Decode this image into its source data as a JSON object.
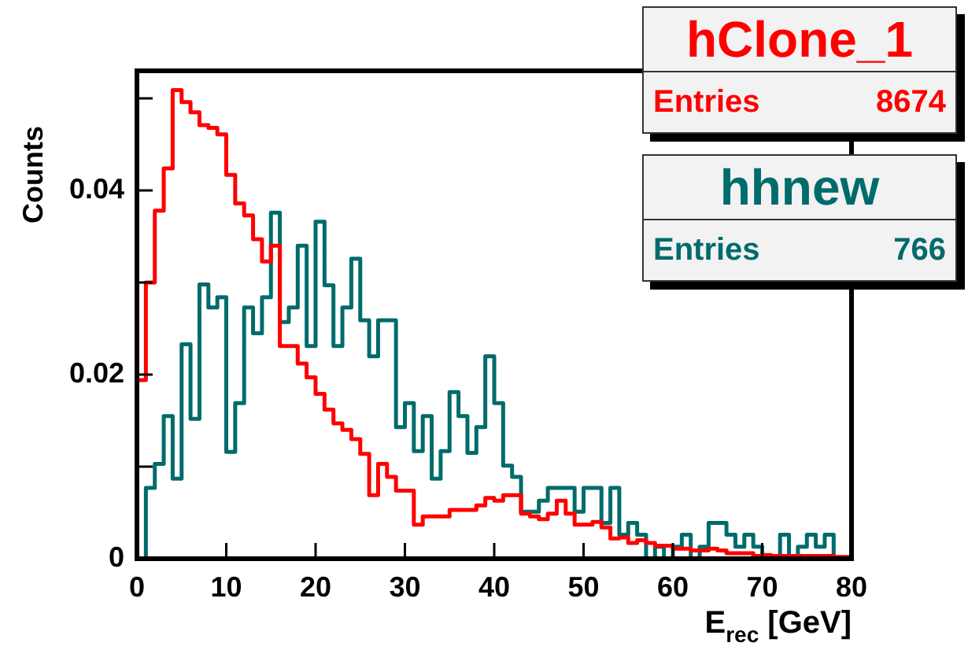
{
  "chart_data": {
    "type": "histogram",
    "xlabel": "E$_{rec}$ [GeV]",
    "ylabel": "Counts",
    "bins": [
      0,
      1,
      2,
      3,
      4,
      5,
      6,
      7,
      8,
      9,
      10,
      11,
      12,
      13,
      14,
      15,
      16,
      17,
      18,
      19,
      20,
      21,
      22,
      23,
      24,
      25,
      26,
      27,
      28,
      29,
      30,
      31,
      32,
      33,
      34,
      35,
      36,
      37,
      38,
      39,
      40,
      41,
      42,
      43,
      44,
      45,
      46,
      47,
      48,
      49,
      50,
      51,
      52,
      53,
      54,
      55,
      56,
      57,
      58,
      59,
      60,
      61,
      62,
      63,
      64,
      65,
      66,
      67,
      68,
      69,
      70,
      71,
      72,
      73,
      74,
      75,
      76,
      77,
      78,
      79,
      80
    ],
    "series": [
      {
        "name": "hClone_1",
        "color": "#ff0000",
        "values": [
          0.0194,
          0.03,
          0.0378,
          0.0424,
          0.0509,
          0.0496,
          0.0485,
          0.0471,
          0.0468,
          0.0461,
          0.0417,
          0.0386,
          0.0373,
          0.0347,
          0.0323,
          0.034,
          0.0231,
          0.0231,
          0.0212,
          0.0197,
          0.0179,
          0.0162,
          0.0147,
          0.014,
          0.013,
          0.0114,
          0.0069,
          0.0103,
          0.0089,
          0.0074,
          0.0074,
          0.0037,
          0.0046,
          0.0046,
          0.0046,
          0.0053,
          0.0053,
          0.0053,
          0.0058,
          0.0066,
          0.0063,
          0.0069,
          0.0069,
          0.0049,
          0.0046,
          0.0043,
          0.0049,
          0.0063,
          0.0049,
          0.0037,
          0.0037,
          0.004,
          0.0034,
          0.0022,
          0.0023,
          0.0017,
          0.002,
          0.0017,
          0.0014,
          0.0014,
          0.0011,
          0.0011,
          0.0009,
          0.0009,
          0.0011,
          0.0009,
          0.0006,
          0.0006,
          0.0006,
          0.0003,
          0.0004,
          0.0003,
          0.0003,
          0.0003,
          0.0003,
          0.0003,
          0.0003,
          0.0003,
          0.0002,
          0.0002
        ]
      },
      {
        "name": "hhnew",
        "color": "#006b6b",
        "values": [
          0,
          0.0077,
          0.0103,
          0.0155,
          0.0087,
          0.0233,
          0.0152,
          0.0298,
          0.0273,
          0.0284,
          0.0116,
          0.0169,
          0.0273,
          0.0245,
          0.0284,
          0.0376,
          0.0257,
          0.0273,
          0.034,
          0.0231,
          0.0366,
          0.0297,
          0.0231,
          0.0273,
          0.0326,
          0.0259,
          0.022,
          0.0259,
          0.0259,
          0.0143,
          0.0169,
          0.0117,
          0.0155,
          0.0087,
          0.0117,
          0.0181,
          0.0155,
          0.0115,
          0.0143,
          0.022,
          0.0169,
          0.0101,
          0.0089,
          0.0051,
          0.0051,
          0.0063,
          0.0077,
          0.0077,
          0.0077,
          0.0051,
          0.0077,
          0.0077,
          0.0039,
          0.0077,
          0.0026,
          0.0039,
          0.0026,
          0,
          0.0013,
          0,
          0.0013,
          0.0026,
          0,
          0.0013,
          0.0039,
          0.0039,
          0.0026,
          0.0013,
          0.0026,
          0.0013,
          0,
          0,
          0.0026,
          0,
          0.0013,
          0.0026,
          0.0013,
          0.0026,
          0,
          0
        ]
      }
    ],
    "xlim": [
      0,
      80
    ],
    "xticks": [
      0,
      10,
      20,
      30,
      40,
      50,
      60,
      70,
      80
    ],
    "ylim": [
      0,
      0.053
    ],
    "yticks": [
      0,
      {
        "value": 0.01,
        "label": null
      },
      0.02,
      {
        "value": 0.03,
        "label": null
      },
      0.04,
      {
        "value": 0.05,
        "label": null
      }
    ],
    "annotations": [
      "Entries 8674",
      "Entries 766"
    ],
    "legend": "top right",
    "grid": false
  }
}
